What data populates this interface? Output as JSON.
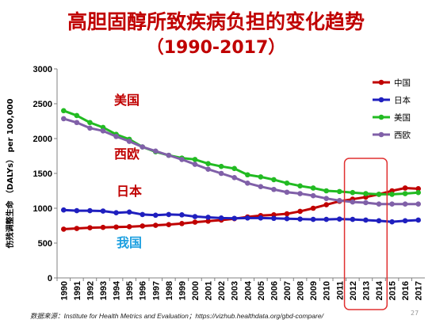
{
  "page": {
    "title": "高胆固醇所致疾病负担的变化趋势",
    "subtitle": "（1990-2017）",
    "source": "数据来源：Institute for Health Metrics and Evaluation；https://vizhub.healthdata.org/gbd-compare/",
    "page_number": "27"
  },
  "chart_data": {
    "type": "line",
    "ylabel": "伤残调整生命 （DALYs） per 100,000",
    "xlabel": "",
    "ylim": [
      0,
      3000
    ],
    "yticks": [
      0,
      500,
      1000,
      1500,
      2000,
      2500,
      3000
    ],
    "ytick_labels": [
      "0",
      "500",
      "1000",
      "1500",
      "2000",
      "2500",
      "3000"
    ],
    "grid": false,
    "legend_position": "top-right",
    "x": [
      "1990",
      "1991",
      "1992",
      "1993",
      "1994",
      "1995",
      "1996",
      "1997",
      "1998",
      "1999",
      "2000",
      "2001",
      "2002",
      "2003",
      "2004",
      "2005",
      "2006",
      "2007",
      "2008",
      "2009",
      "2010",
      "2011",
      "2012",
      "2013",
      "2014",
      "2015",
      "2016",
      "2017"
    ],
    "series": [
      {
        "name": "中国",
        "color": "#c00000",
        "values": [
          700,
          710,
          720,
          725,
          730,
          735,
          745,
          755,
          765,
          780,
          800,
          815,
          830,
          850,
          875,
          895,
          905,
          920,
          955,
          1000,
          1050,
          1100,
          1130,
          1160,
          1200,
          1250,
          1290,
          1280
        ]
      },
      {
        "name": "日本",
        "color": "#1f1fbf",
        "values": [
          975,
          965,
          965,
          960,
          935,
          945,
          910,
          900,
          910,
          905,
          880,
          870,
          860,
          855,
          860,
          860,
          855,
          850,
          845,
          840,
          840,
          845,
          840,
          830,
          820,
          805,
          820,
          830
        ]
      },
      {
        "name": "美国",
        "color": "#22bb22",
        "values": [
          2400,
          2330,
          2230,
          2160,
          2060,
          1990,
          1880,
          1810,
          1760,
          1720,
          1700,
          1640,
          1600,
          1570,
          1480,
          1450,
          1410,
          1360,
          1320,
          1290,
          1250,
          1240,
          1225,
          1210,
          1200,
          1200,
          1210,
          1225
        ]
      },
      {
        "name": "西欧",
        "color": "#8060a8",
        "values": [
          2285,
          2230,
          2150,
          2110,
          2030,
          1960,
          1880,
          1820,
          1760,
          1700,
          1630,
          1560,
          1500,
          1440,
          1360,
          1310,
          1270,
          1230,
          1210,
          1180,
          1140,
          1110,
          1090,
          1080,
          1060,
          1060,
          1060,
          1060
        ]
      }
    ],
    "annotations": [
      {
        "text": "美国",
        "color": "#c00000"
      },
      {
        "text": "西欧",
        "color": "#c00000"
      },
      {
        "text": "日本",
        "color": "#c00000"
      },
      {
        "text": "我国",
        "color": "#1ea0e0"
      }
    ],
    "highlight_range": [
      "2012",
      "2014"
    ],
    "highlight_color": "#e03030"
  }
}
